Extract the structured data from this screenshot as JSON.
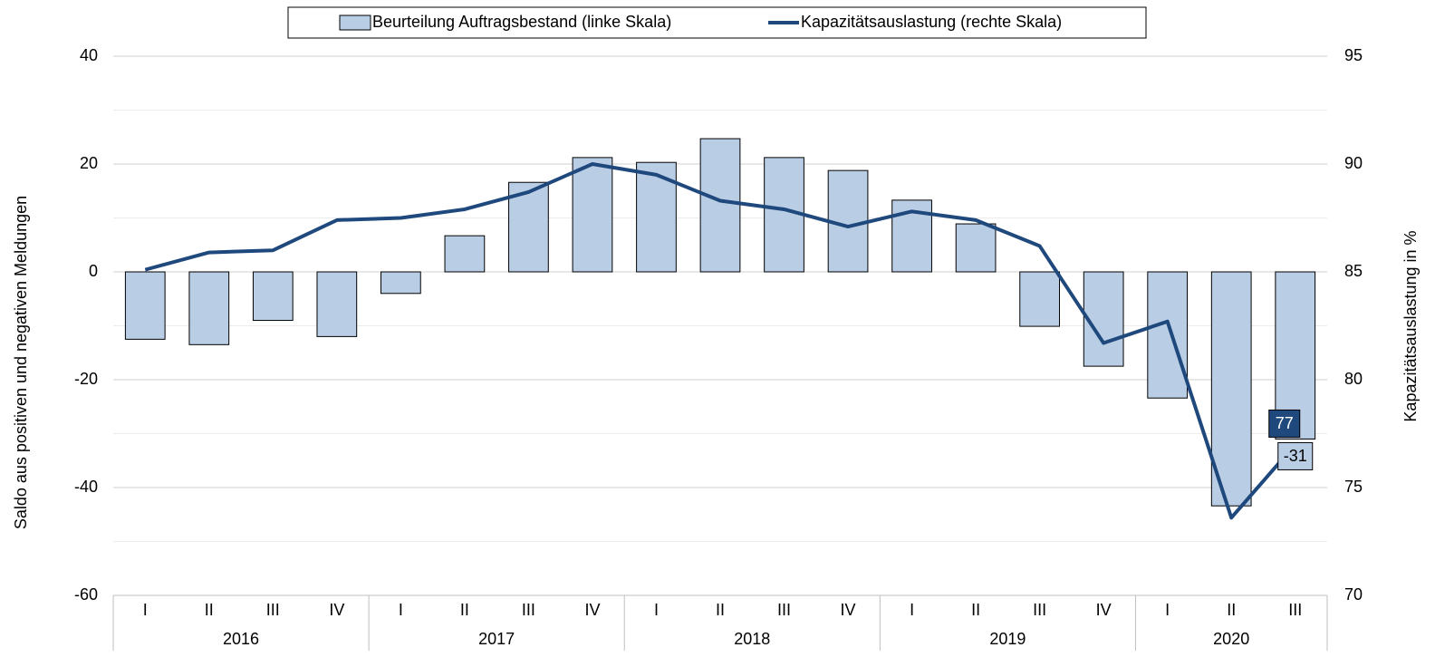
{
  "chart_data": {
    "type": "bar_line",
    "categories": [
      "I",
      "II",
      "III",
      "IV",
      "I",
      "II",
      "III",
      "IV",
      "I",
      "II",
      "III",
      "IV",
      "I",
      "II",
      "III",
      "IV",
      "I",
      "II",
      "III"
    ],
    "year_groups": [
      "2016",
      "2017",
      "2018",
      "2019",
      "2020"
    ],
    "series": [
      {
        "name": "Beurteilung Auftragsbestand (linke Skala)",
        "type": "bar",
        "axis": "y",
        "color": "#b9cde5",
        "values": [
          -12.5,
          -13.5,
          -9,
          -12,
          -4,
          6.7,
          16.6,
          21.2,
          20.3,
          24.7,
          21.2,
          18.8,
          13.3,
          8.9,
          -10.1,
          -17.5,
          -23.4,
          -43.4,
          -31
        ]
      },
      {
        "name": "Kapazitätsauslastung (rechte Skala)",
        "type": "line",
        "axis": "y2",
        "color": "#1f497d",
        "values": [
          85.1,
          85.9,
          86.0,
          87.4,
          87.5,
          87.9,
          88.7,
          90.0,
          89.5,
          88.3,
          87.9,
          87.1,
          87.8,
          87.4,
          86.2,
          81.7,
          82.7,
          73.6,
          77
        ]
      }
    ],
    "ylabel": "Saldo aus positiven und negativen Meldungen",
    "y2label": "Kapazitätsauslastung  in %",
    "ylim": [
      -60,
      40
    ],
    "yticks": [
      -60,
      -40,
      -20,
      0,
      20,
      40
    ],
    "minor_grid": [
      -50,
      -30,
      -10,
      10,
      30
    ],
    "y2lim": [
      70,
      95
    ],
    "y2ticks": [
      70,
      75,
      80,
      85,
      90,
      95
    ],
    "grid": true
  }
}
